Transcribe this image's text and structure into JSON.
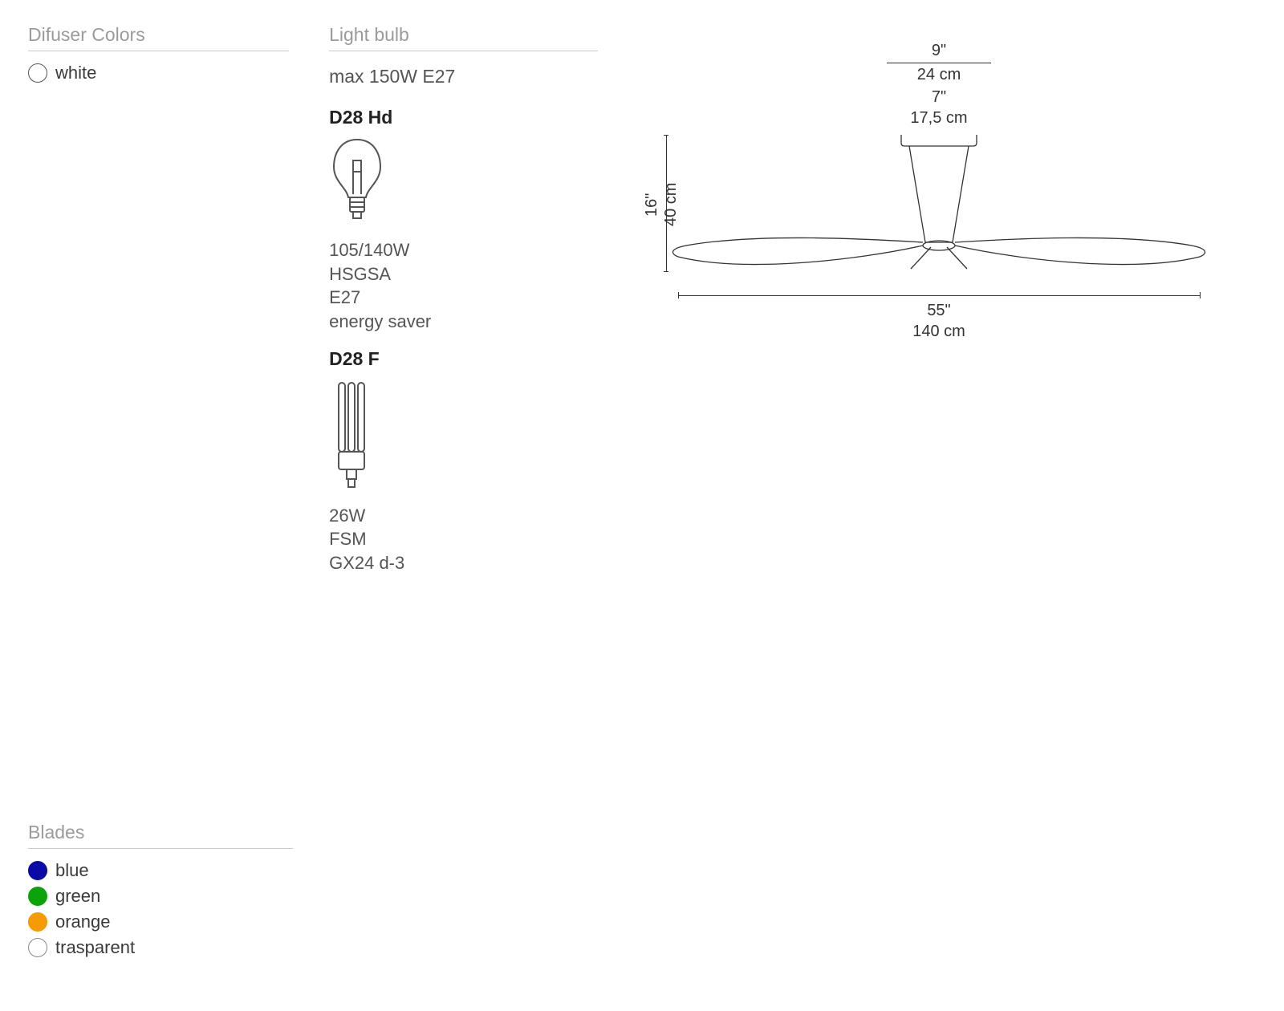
{
  "diffuser": {
    "title": "Difuser Colors",
    "options": [
      {
        "label": "white",
        "color": "#ffffff",
        "border": "#555555"
      }
    ]
  },
  "blades": {
    "title": "Blades",
    "options": [
      {
        "label": "blue",
        "color": "#0a0aa8",
        "border": "#0a0aa8"
      },
      {
        "label": "green",
        "color": "#0aa40a",
        "border": "#0aa40a"
      },
      {
        "label": "orange",
        "color": "#f59a00",
        "border": "#f59a00"
      },
      {
        "label": "trasparent",
        "color": "#ffffff",
        "border": "#888888"
      }
    ]
  },
  "lightbulb": {
    "title": "Light bulb",
    "max_spec": "max 150W E27",
    "models": [
      {
        "name": "D28 Hd",
        "icon": "incandescent",
        "specs": [
          "105/140W",
          "HSGSA",
          "E27",
          "energy saver"
        ]
      },
      {
        "name": "D28 F",
        "icon": "cfl",
        "specs": [
          "26W",
          "FSM",
          "GX24 d-3"
        ]
      }
    ]
  },
  "diagram": {
    "dims": {
      "top_width_in": "9\"",
      "top_width_cm": "24 cm",
      "mid_width_in": "7\"",
      "mid_width_cm": "17,5 cm",
      "height_in": "16\"",
      "height_cm": "40 cm",
      "span_in": "55\"",
      "span_cm": "140 cm"
    },
    "stroke": "#333333",
    "stroke_width": 1.2,
    "label_fontsize": 20,
    "label_color": "#333333"
  },
  "styling": {
    "title_color": "#9b9b9b",
    "title_border": "#c9c9c9",
    "text_color": "#555555",
    "body_bg": "#ffffff",
    "swatch_label_fontsize": 22,
    "title_fontsize": 23,
    "spec_fontsize": 22,
    "model_title_fontsize": 23
  }
}
